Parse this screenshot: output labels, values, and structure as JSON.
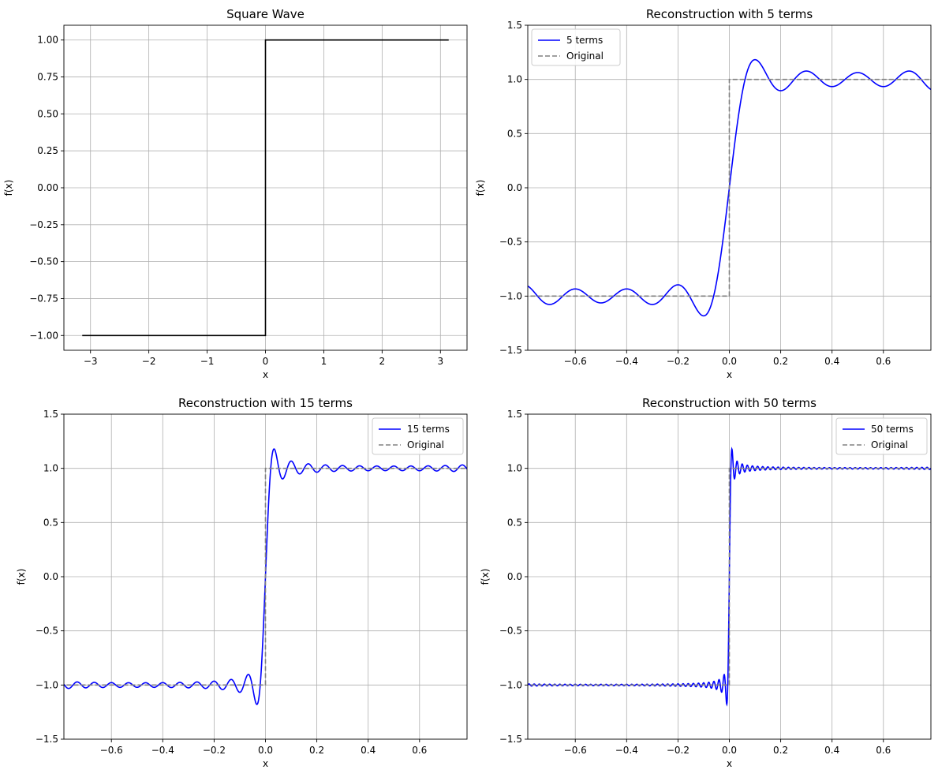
{
  "chart_data": [
    {
      "type": "line",
      "title": "Square Wave",
      "xlabel": "x",
      "ylabel": "f(x)",
      "xlim": [
        -3.456,
        3.456
      ],
      "ylim": [
        -1.1,
        1.1
      ],
      "xticks": [
        -3,
        -2,
        -1,
        0,
        1,
        2,
        3
      ],
      "xtick_labels": [
        "−3",
        "−2",
        "−1",
        "0",
        "1",
        "2",
        "3"
      ],
      "yticks": [
        -1.0,
        -0.75,
        -0.5,
        -0.25,
        0.0,
        0.25,
        0.5,
        0.75,
        1.0
      ],
      "ytick_labels": [
        "−1.00",
        "−0.75",
        "−0.50",
        "−0.25",
        "0.00",
        "0.25",
        "0.50",
        "0.75",
        "1.00"
      ],
      "grid": true,
      "legend": null,
      "series": [
        {
          "name": "",
          "color": "#000000",
          "style": "solid",
          "kind": "square",
          "x_range": [
            -3.1416,
            3.1416
          ]
        }
      ]
    },
    {
      "type": "line",
      "title": "Reconstruction with 5 terms",
      "xlabel": "x",
      "ylabel": "f(x)",
      "xlim": [
        -0.785,
        0.785
      ],
      "ylim": [
        -1.5,
        1.5
      ],
      "xticks": [
        -0.6,
        -0.4,
        -0.2,
        0.0,
        0.2,
        0.4,
        0.6
      ],
      "xtick_labels": [
        "−0.6",
        "−0.4",
        "−0.2",
        "0.0",
        "0.2",
        "0.4",
        "0.6"
      ],
      "yticks": [
        -1.5,
        -1.0,
        -0.5,
        0.0,
        0.5,
        1.0,
        1.5
      ],
      "ytick_labels": [
        "−1.5",
        "−1.0",
        "−0.5",
        "0.0",
        "0.5",
        "1.0",
        "1.5"
      ],
      "grid": true,
      "legend": "upper-left",
      "series": [
        {
          "name": "5 terms",
          "color": "#0000ff",
          "style": "solid",
          "kind": "fourier",
          "terms": 5
        },
        {
          "name": "Original",
          "color": "#808080",
          "style": "dashed",
          "kind": "square"
        }
      ]
    },
    {
      "type": "line",
      "title": "Reconstruction with 15 terms",
      "xlabel": "x",
      "ylabel": "f(x)",
      "xlim": [
        -0.785,
        0.785
      ],
      "ylim": [
        -1.5,
        1.5
      ],
      "xticks": [
        -0.6,
        -0.4,
        -0.2,
        0.0,
        0.2,
        0.4,
        0.6
      ],
      "xtick_labels": [
        "−0.6",
        "−0.4",
        "−0.2",
        "0.0",
        "0.2",
        "0.4",
        "0.6"
      ],
      "yticks": [
        -1.5,
        -1.0,
        -0.5,
        0.0,
        0.5,
        1.0,
        1.5
      ],
      "ytick_labels": [
        "−1.5",
        "−1.0",
        "−0.5",
        "0.0",
        "0.5",
        "1.0",
        "1.5"
      ],
      "grid": true,
      "legend": "upper-right",
      "series": [
        {
          "name": "15 terms",
          "color": "#0000ff",
          "style": "solid",
          "kind": "fourier",
          "terms": 15
        },
        {
          "name": "Original",
          "color": "#808080",
          "style": "dashed",
          "kind": "square"
        }
      ]
    },
    {
      "type": "line",
      "title": "Reconstruction with 50 terms",
      "xlabel": "x",
      "ylabel": "f(x)",
      "xlim": [
        -0.785,
        0.785
      ],
      "ylim": [
        -1.5,
        1.5
      ],
      "xticks": [
        -0.6,
        -0.4,
        -0.2,
        0.0,
        0.2,
        0.4,
        0.6
      ],
      "xtick_labels": [
        "−0.6",
        "−0.4",
        "−0.2",
        "0.0",
        "0.2",
        "0.4",
        "0.6"
      ],
      "yticks": [
        -1.5,
        -1.0,
        -0.5,
        0.0,
        0.5,
        1.0,
        1.5
      ],
      "ytick_labels": [
        "−1.5",
        "−1.0",
        "−0.5",
        "0.0",
        "0.5",
        "1.0",
        "1.5"
      ],
      "grid": true,
      "legend": "upper-right",
      "series": [
        {
          "name": "50 terms",
          "color": "#0000ff",
          "style": "solid",
          "kind": "fourier",
          "terms": 50
        },
        {
          "name": "Original",
          "color": "#808080",
          "style": "dashed",
          "kind": "square"
        }
      ]
    }
  ]
}
